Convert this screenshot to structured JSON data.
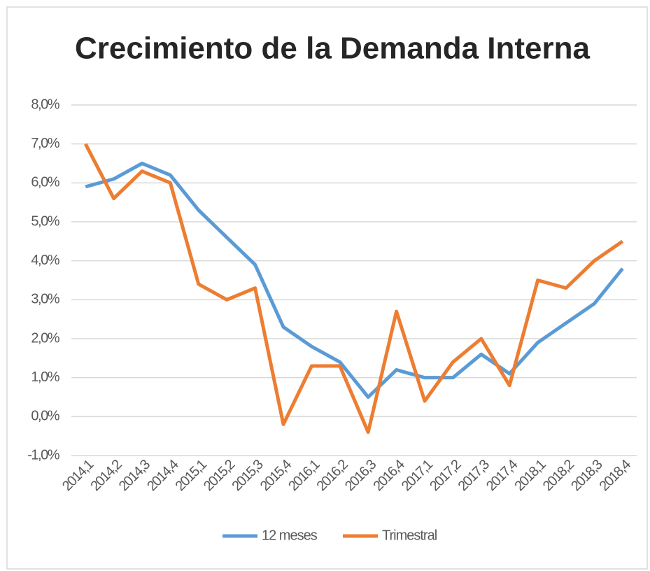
{
  "chart_data": {
    "type": "line",
    "title": "Crecimiento de la Demanda Interna",
    "categories": [
      "2014,1",
      "2014,2",
      "2014,3",
      "2014,4",
      "2015,1",
      "2015,2",
      "2015,3",
      "2015,4",
      "2016,1",
      "2016,2",
      "2016,3",
      "2016,4",
      "2017,1",
      "2017,2",
      "2017,3",
      "2017,4",
      "2018,1",
      "2018,2",
      "2018,3",
      "2018,4"
    ],
    "series": [
      {
        "name": "12 meses",
        "color": "#5b9bd5",
        "values": [
          5.9,
          6.1,
          6.5,
          6.2,
          5.3,
          4.6,
          3.9,
          2.3,
          1.8,
          1.4,
          0.5,
          1.2,
          1.0,
          1.0,
          1.6,
          1.1,
          1.9,
          2.4,
          2.9,
          3.8
        ]
      },
      {
        "name": "Trimestral",
        "color": "#ed7d31",
        "values": [
          7.0,
          5.6,
          6.3,
          6.0,
          3.4,
          3.0,
          3.3,
          -0.2,
          1.3,
          1.3,
          -0.4,
          2.7,
          0.4,
          1.4,
          2.0,
          0.8,
          3.5,
          3.3,
          4.0,
          4.5
        ]
      }
    ],
    "ylim": [
      -1,
      8
    ],
    "yticks": [
      {
        "value": -1,
        "label": "-1,0%"
      },
      {
        "value": 0,
        "label": "0,0%"
      },
      {
        "value": 1,
        "label": "1,0%"
      },
      {
        "value": 2,
        "label": "2,0%"
      },
      {
        "value": 3,
        "label": "3,0%"
      },
      {
        "value": 4,
        "label": "4,0%"
      },
      {
        "value": 5,
        "label": "5,0%"
      },
      {
        "value": 6,
        "label": "6,0%"
      },
      {
        "value": 7,
        "label": "7,0%"
      },
      {
        "value": 8,
        "label": "8,0%"
      }
    ],
    "grid": true
  }
}
